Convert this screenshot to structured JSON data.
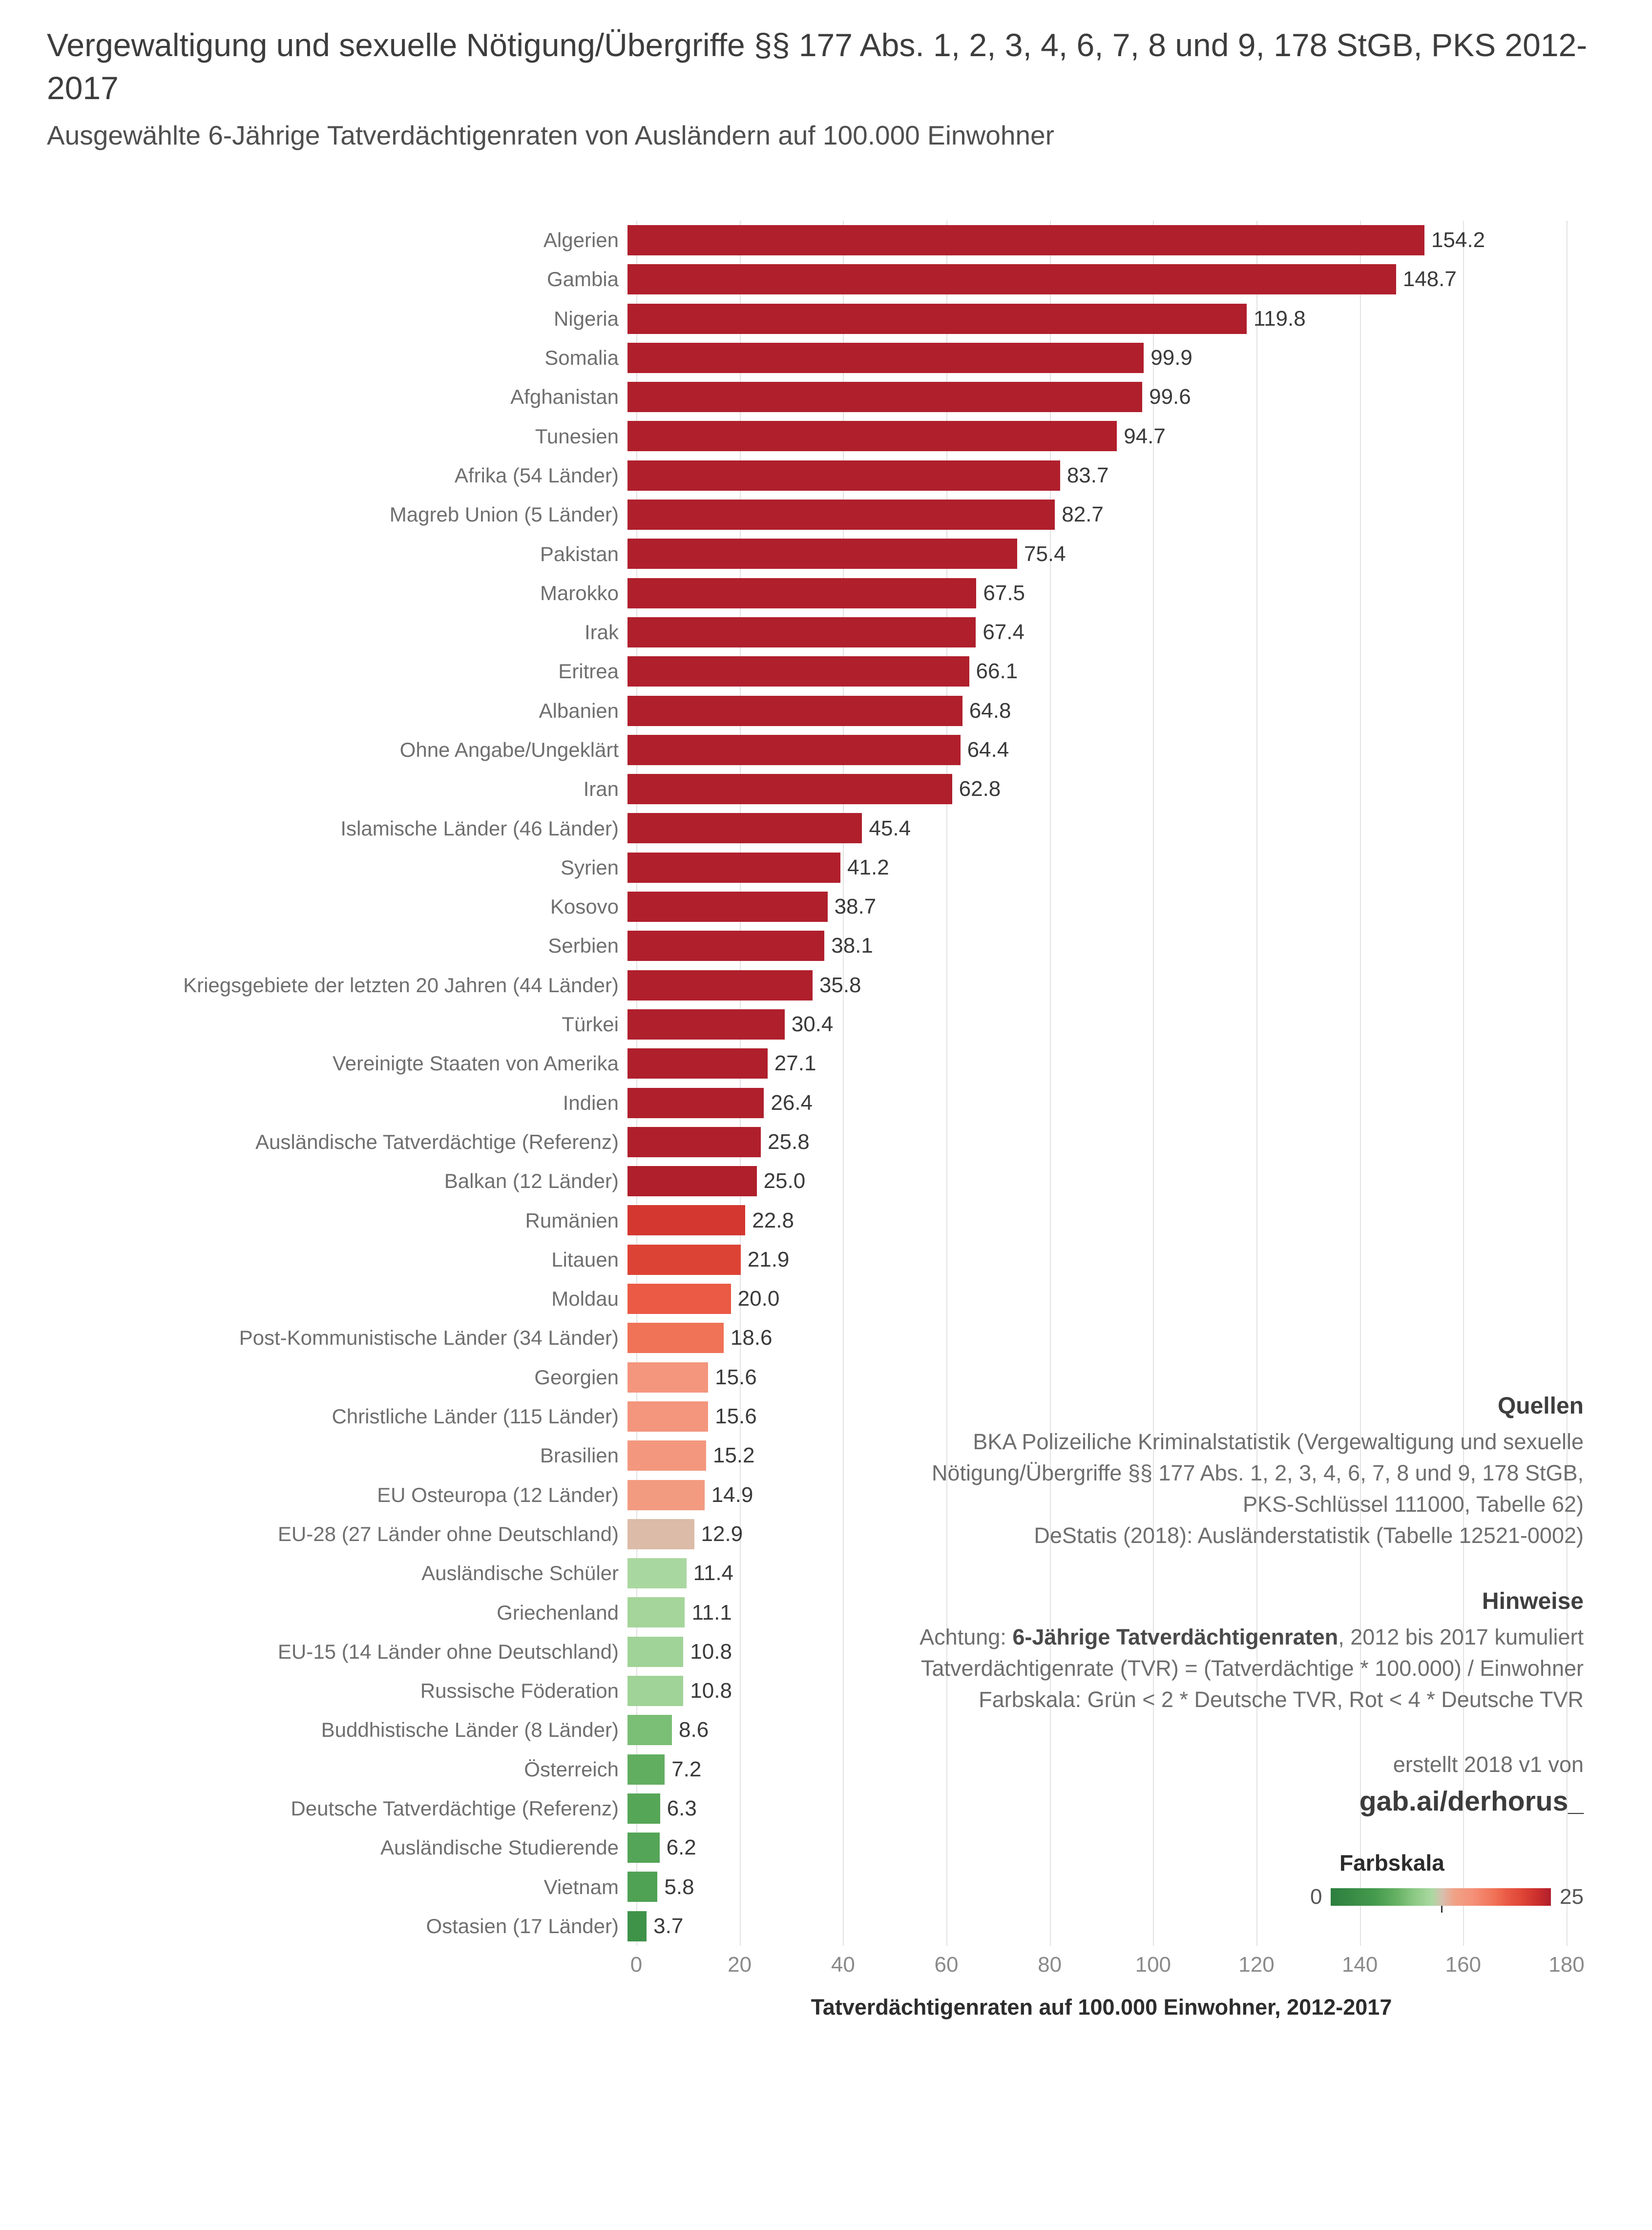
{
  "page": {
    "title": "Vergewaltigung und sexuelle Nötigung/Übergriffe §§ 177 Abs. 1, 2, 3, 4, 6, 7, 8 und 9, 178 StGB, PKS 2012-2017",
    "subtitle": "Ausgewählte 6-Jährige Tatverdächtigenraten von Ausländern auf 100.000 Einwohner"
  },
  "chart_data": {
    "type": "bar",
    "orientation": "horizontal",
    "title": "Vergewaltigung und sexuelle Nötigung/Übergriffe §§ 177 Abs. 1, 2, 3, 4, 6, 7, 8 und 9, 178 StGB, PKS 2012-2017",
    "subtitle": "Ausgewählte 6-Jährige Tatverdächtigenraten von Ausländern auf 100.000 Einwohner",
    "xlabel": "Tatverdächtigenraten auf 100.000 Einwohner, 2012-2017",
    "ylabel": "",
    "xlim": [
      0,
      180
    ],
    "xticks": [
      0,
      20,
      40,
      60,
      80,
      100,
      120,
      140,
      160,
      180
    ],
    "grid": true,
    "categories": [
      "Algerien",
      "Gambia",
      "Nigeria",
      "Somalia",
      "Afghanistan",
      "Tunesien",
      "Afrika (54 Länder)",
      "Magreb Union (5 Länder)",
      "Pakistan",
      "Marokko",
      "Irak",
      "Eritrea",
      "Albanien",
      "Ohne Angabe/Ungeklärt",
      "Iran",
      "Islamische Länder (46 Länder)",
      "Syrien",
      "Kosovo",
      "Serbien",
      "Kriegsgebiete der letzten 20 Jahren (44 Länder)",
      "Türkei",
      "Vereinigte Staaten von Amerika",
      "Indien",
      "Ausländische Tatverdächtige (Referenz)",
      "Balkan (12 Länder)",
      "Rumänien",
      "Litauen",
      "Moldau",
      "Post-Kommunistische Länder (34 Länder)",
      "Georgien",
      "Christliche Länder (115 Länder)",
      "Brasilien",
      "EU Osteuropa (12 Länder)",
      "EU-28 (27 Länder ohne Deutschland)",
      "Ausländische Schüler",
      "Griechenland",
      "EU-15 (14 Länder ohne Deutschland)",
      "Russische Föderation",
      "Buddhistische Länder (8 Länder)",
      "Österreich",
      "Deutsche Tatverdächtige (Referenz)",
      "Ausländische Studierende",
      "Vietnam",
      "Ostasien (17 Länder)"
    ],
    "values": [
      154.2,
      148.7,
      119.8,
      99.9,
      99.6,
      94.7,
      83.7,
      82.7,
      75.4,
      67.5,
      67.4,
      66.1,
      64.8,
      64.4,
      62.8,
      45.4,
      41.2,
      38.7,
      38.1,
      35.8,
      30.4,
      27.1,
      26.4,
      25.8,
      25.0,
      22.8,
      21.9,
      20.0,
      18.6,
      15.6,
      15.6,
      15.2,
      14.9,
      12.9,
      11.4,
      11.1,
      10.8,
      10.8,
      8.6,
      7.2,
      6.3,
      6.2,
      5.8,
      3.7
    ],
    "colorscale": {
      "domain": [
        0,
        25
      ],
      "stops": [
        [
          0,
          "#2d7e3e"
        ],
        [
          5,
          "#449a4d"
        ],
        [
          7.5,
          "#66b163"
        ],
        [
          9.5,
          "#8cc985"
        ],
        [
          11.5,
          "#abd8a1"
        ],
        [
          12.7,
          "#d8bfae"
        ],
        [
          14,
          "#f0a287"
        ],
        [
          16,
          "#f5927a"
        ],
        [
          18.6,
          "#f07257"
        ],
        [
          20,
          "#ea5a45"
        ],
        [
          22,
          "#dc4234"
        ],
        [
          23.5,
          "#cb2e2d"
        ],
        [
          25,
          "#b01f2c"
        ]
      ]
    }
  },
  "annotations": {
    "quellen": {
      "heading": "Quellen",
      "lines": [
        "BKA Polizeiliche Kriminalstatistik (Vergewaltigung und sexuelle",
        "Nötigung/Übergriffe §§ 177 Abs. 1, 2, 3, 4, 6, 7, 8 und 9, 178 StGB,",
        "PKS-Schlüssel 111000, Tabelle 62)",
        "DeStatis (2018): Ausländerstatistik (Tabelle 12521-0002)"
      ]
    },
    "hinweise": {
      "heading": "Hinweise",
      "line1": {
        "prefix": "Achtung: ",
        "bold": "6-Jährige Tatverdächtigenraten",
        "suffix": ", 2012 bis 2017 kumuliert"
      },
      "line2": "Tatverdächtigenrate (TVR) = (Tatverdächtige * 100.000) / Einwohner",
      "line3": "Farbskala: Grün < 2 * Deutsche TVR, Rot < 4 * Deutsche TVR"
    },
    "credit": {
      "line1": "erstellt 2018 v1 von",
      "handle": "gab.ai/derhorus_"
    },
    "legend": {
      "title": "Farbskala",
      "min": "0",
      "max": "25"
    }
  }
}
